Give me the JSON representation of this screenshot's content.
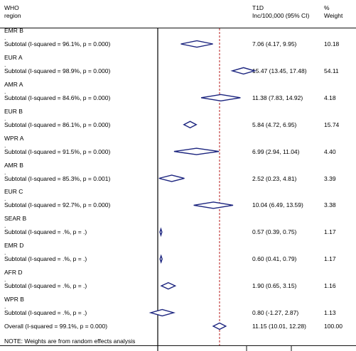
{
  "header": {
    "col1": "WHO\nregion",
    "col2": "T1D\nInc/100,000 (95% CI)",
    "col3": "%\nWeight"
  },
  "footnote": "NOTE: Weights are from random effects analysis",
  "chart_data": {
    "type": "forest",
    "null_line": 0,
    "overall_line": 11.15,
    "rows": [
      {
        "region": "EMR B",
        "subtotal": "Subtotal  (I-squared = 96.1%, p = 0.000)",
        "est": 7.06,
        "lo": 4.17,
        "hi": 9.95,
        "ci": "7.06 (4.17, 9.95)",
        "weight": "10.18"
      },
      {
        "region": "EUR A",
        "subtotal": "Subtotal  (I-squared = 98.9%, p = 0.000)",
        "est": 15.47,
        "lo": 13.45,
        "hi": 17.48,
        "ci": "15.47 (13.45, 17.48)",
        "weight": "54.11"
      },
      {
        "region": "AMR A",
        "subtotal": "Subtotal  (I-squared = 84.6%, p = 0.000)",
        "est": 11.38,
        "lo": 7.83,
        "hi": 14.92,
        "ci": "11.38 (7.83, 14.92)",
        "weight": "4.18"
      },
      {
        "region": "EUR B",
        "subtotal": "Subtotal  (I-squared = 86.1%, p = 0.000)",
        "est": 5.84,
        "lo": 4.72,
        "hi": 6.95,
        "ci": "5.84 (4.72, 6.95)",
        "weight": "15.74"
      },
      {
        "region": "WPR A",
        "subtotal": "Subtotal  (I-squared = 91.5%, p = 0.000)",
        "est": 6.99,
        "lo": 2.94,
        "hi": 11.04,
        "ci": "6.99 (2.94, 11.04)",
        "weight": "4.40"
      },
      {
        "region": "AMR B",
        "subtotal": "Subtotal  (I-squared = 85.3%, p = 0.001)",
        "est": 2.52,
        "lo": 0.23,
        "hi": 4.81,
        "ci": "2.52 (0.23, 4.81)",
        "weight": "3.39"
      },
      {
        "region": "EUR C",
        "subtotal": "Subtotal  (I-squared = 92.7%, p = 0.000)",
        "est": 10.04,
        "lo": 6.49,
        "hi": 13.59,
        "ci": "10.04 (6.49, 13.59)",
        "weight": "3.38"
      },
      {
        "region": "SEAR B",
        "subtotal": "Subtotal  (I-squared = .%, p = .)",
        "est": 0.57,
        "lo": 0.39,
        "hi": 0.75,
        "ci": "0.57 (0.39, 0.75)",
        "weight": "1.17"
      },
      {
        "region": "EMR D",
        "subtotal": "Subtotal  (I-squared = .%, p = .)",
        "est": 0.6,
        "lo": 0.41,
        "hi": 0.79,
        "ci": "0.60 (0.41, 0.79)",
        "weight": "1.17"
      },
      {
        "region": "AFR D",
        "subtotal": "Subtotal  (I-squared = .%, p = .)",
        "est": 1.9,
        "lo": 0.65,
        "hi": 3.15,
        "ci": "1.90 (0.65, 3.15)",
        "weight": "1.16"
      },
      {
        "region": "WPR B",
        "subtotal": "Subtotal  (I-squared = .%, p = .)",
        "est": 0.8,
        "lo": -1.27,
        "hi": 2.87,
        "ci": "0.80 (-1.27, 2.87)",
        "weight": "1.13"
      }
    ],
    "overall": {
      "label": "Overall  (I-squared = 99.1%, p = 0.000)",
      "est": 11.15,
      "lo": 10.01,
      "hi": 12.28,
      "ci": "11.15 (10.01, 12.28)",
      "weight": "100.00"
    },
    "colors": {
      "diamond": "#1a237e",
      "overall_line": "#b71c1c",
      "null_line": "#000000"
    }
  }
}
